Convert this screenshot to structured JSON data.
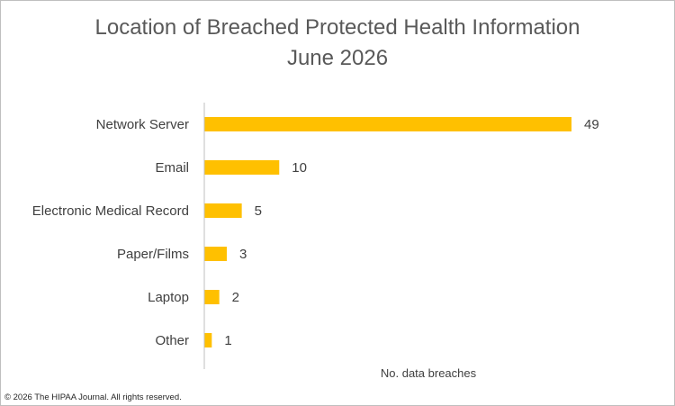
{
  "chart_data": {
    "type": "bar",
    "orientation": "horizontal",
    "title": "Location of Breached Protected Health Information",
    "subtitle": "June 2026",
    "categories": [
      "Network Server",
      "Email",
      "Electronic Medical Record",
      "Paper/Films",
      "Laptop",
      "Other"
    ],
    "values": [
      49,
      10,
      5,
      3,
      2,
      1
    ],
    "xlabel": "No. data breaches",
    "ylabel": "",
    "xlim": [
      0,
      50
    ],
    "grid": false,
    "legend": "none",
    "bar_color": "#FFC000",
    "axis_color": "#bfbfbf"
  },
  "footer": {
    "copyright": "© 2026 The HIPAA Journal. All rights reserved."
  }
}
